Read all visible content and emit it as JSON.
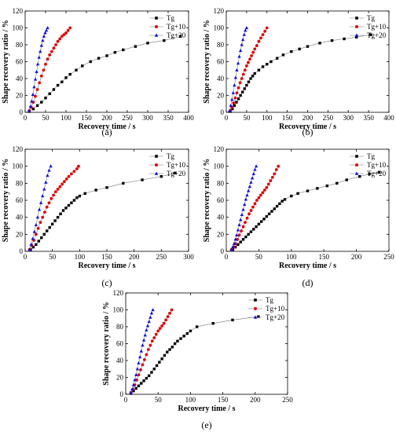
{
  "colors": {
    "Tg": "#000000",
    "Tg+10": "#e00000",
    "Tg+20": "#1010e0"
  },
  "chart_data": [
    {
      "type": "line",
      "panel": "(a)",
      "xlabel": "Recovery time / s",
      "ylabel": "Shape recovery ratio / %",
      "xlim": [
        0,
        400
      ],
      "ylim": [
        0,
        120
      ],
      "xticks": [
        0,
        50,
        100,
        150,
        200,
        250,
        300,
        350,
        400
      ],
      "yticks": [
        0,
        20,
        40,
        60,
        80,
        100,
        120
      ],
      "legend": "top-right",
      "series": [
        {
          "name": "Tg",
          "marker": "square",
          "color": "#000000",
          "x": [
            10,
            20,
            30,
            40,
            50,
            60,
            70,
            80,
            90,
            100,
            110,
            125,
            140,
            160,
            180,
            200,
            220,
            240,
            270,
            300,
            340,
            380
          ],
          "y": [
            1,
            4,
            8,
            12,
            17,
            22,
            27,
            32,
            36,
            41,
            45,
            50,
            55,
            60,
            64,
            67,
            71,
            74,
            78,
            82,
            85,
            90
          ]
        },
        {
          "name": "Tg+10",
          "marker": "circle",
          "color": "#e00000",
          "x": [
            10,
            15,
            20,
            25,
            30,
            35,
            40,
            45,
            50,
            55,
            60,
            65,
            70,
            75,
            80,
            85,
            90,
            95,
            100,
            105,
            110
          ],
          "y": [
            2,
            6,
            12,
            19,
            27,
            35,
            43,
            50,
            57,
            63,
            68,
            72,
            76,
            80,
            84,
            87,
            90,
            92,
            94,
            97,
            100
          ]
        },
        {
          "name": "Tg+20",
          "marker": "triangle",
          "color": "#1010e0",
          "x": [
            10,
            13,
            16,
            19,
            22,
            25,
            28,
            31,
            34,
            37,
            40,
            43,
            46,
            49,
            52,
            55
          ],
          "y": [
            2,
            7,
            13,
            21,
            30,
            39,
            48,
            57,
            65,
            72,
            79,
            85,
            90,
            94,
            97,
            100
          ]
        }
      ]
    },
    {
      "type": "line",
      "panel": "(b)",
      "xlabel": "Recovery time / s",
      "ylabel": "Shape recovery ratio / %",
      "xlim": [
        0,
        400
      ],
      "ylim": [
        0,
        120
      ],
      "xticks": [
        0,
        50,
        100,
        150,
        200,
        250,
        300,
        350,
        400
      ],
      "yticks": [
        0,
        20,
        40,
        60,
        80,
        100,
        120
      ],
      "legend": "top-right",
      "series": [
        {
          "name": "Tg",
          "marker": "square",
          "color": "#000000",
          "x": [
            10,
            15,
            20,
            25,
            30,
            35,
            40,
            45,
            50,
            55,
            60,
            65,
            70,
            80,
            90,
            100,
            110,
            125,
            140,
            160,
            180,
            200,
            230,
            260,
            290,
            320,
            355
          ],
          "y": [
            1,
            4,
            8,
            12,
            16,
            20,
            24,
            28,
            32,
            36,
            40,
            43,
            46,
            50,
            54,
            57,
            60,
            64,
            68,
            72,
            75,
            78,
            82,
            85,
            87,
            89,
            92
          ]
        },
        {
          "name": "Tg+10",
          "marker": "circle",
          "color": "#e00000",
          "x": [
            10,
            14,
            18,
            22,
            26,
            30,
            34,
            38,
            42,
            46,
            50,
            54,
            58,
            62,
            66,
            70,
            75,
            80,
            85,
            90,
            95,
            100
          ],
          "y": [
            2,
            6,
            11,
            17,
            23,
            29,
            35,
            40,
            45,
            50,
            55,
            59,
            63,
            67,
            71,
            75,
            79,
            84,
            88,
            92,
            96,
            100
          ]
        },
        {
          "name": "Tg+20",
          "marker": "triangle",
          "color": "#1010e0",
          "x": [
            8,
            11,
            14,
            17,
            20,
            23,
            26,
            29,
            32,
            35,
            38,
            41,
            44,
            47,
            50
          ],
          "y": [
            2,
            8,
            15,
            23,
            32,
            41,
            50,
            58,
            66,
            73,
            80,
            86,
            92,
            97,
            100
          ]
        }
      ]
    },
    {
      "type": "line",
      "panel": "(c)",
      "xlabel": "Recovery time / s",
      "ylabel": "Shape recovery ratio / %",
      "xlim": [
        0,
        300
      ],
      "ylim": [
        0,
        120
      ],
      "xticks": [
        0,
        50,
        100,
        150,
        200,
        250,
        300
      ],
      "yticks": [
        0,
        20,
        40,
        60,
        80,
        100,
        120
      ],
      "legend": "top-right",
      "series": [
        {
          "name": "Tg",
          "marker": "square",
          "color": "#000000",
          "x": [
            10,
            15,
            20,
            25,
            30,
            35,
            40,
            45,
            50,
            55,
            60,
            65,
            70,
            75,
            80,
            85,
            90,
            95,
            100,
            110,
            130,
            150,
            180,
            215,
            250,
            275
          ],
          "y": [
            2,
            5,
            8,
            12,
            16,
            20,
            24,
            28,
            32,
            36,
            40,
            44,
            48,
            51,
            54,
            57,
            60,
            63,
            65,
            68,
            72,
            75,
            80,
            84,
            88,
            92
          ]
        },
        {
          "name": "Tg+10",
          "marker": "circle",
          "color": "#e00000",
          "x": [
            8,
            12,
            16,
            20,
            24,
            28,
            32,
            36,
            40,
            44,
            48,
            52,
            56,
            60,
            64,
            68,
            72,
            76,
            80,
            85,
            90,
            95,
            98
          ],
          "y": [
            2,
            7,
            13,
            20,
            27,
            34,
            40,
            46,
            52,
            57,
            62,
            66,
            70,
            73,
            76,
            79,
            82,
            85,
            88,
            91,
            94,
            97,
            100
          ]
        },
        {
          "name": "Tg+20",
          "marker": "triangle",
          "color": "#1010e0",
          "x": [
            8,
            11,
            14,
            17,
            20,
            23,
            26,
            29,
            32,
            35,
            38,
            41,
            44,
            47
          ],
          "y": [
            2,
            8,
            15,
            23,
            31,
            40,
            49,
            57,
            65,
            73,
            81,
            89,
            95,
            100
          ]
        }
      ]
    },
    {
      "type": "line",
      "panel": "(d)",
      "xlabel": "Recovery time / s",
      "ylabel": "Shape recovery ratio / %",
      "xlim": [
        0,
        250
      ],
      "ylim": [
        0,
        120
      ],
      "xticks": [
        0,
        50,
        100,
        150,
        200,
        250
      ],
      "yticks": [
        0,
        20,
        40,
        60,
        80,
        100,
        120
      ],
      "legend": "top-right",
      "series": [
        {
          "name": "Tg",
          "marker": "square",
          "color": "#000000",
          "x": [
            10,
            14,
            18,
            22,
            26,
            30,
            34,
            38,
            42,
            46,
            50,
            54,
            58,
            62,
            66,
            70,
            74,
            78,
            82,
            86,
            90,
            100,
            110,
            125,
            140,
            155,
            170,
            185,
            205,
            220,
            235
          ],
          "y": [
            2,
            5,
            8,
            11,
            14,
            17,
            20,
            23,
            26,
            29,
            32,
            35,
            38,
            41,
            44,
            47,
            50,
            53,
            56,
            59,
            61,
            65,
            68,
            71,
            74,
            77,
            80,
            84,
            88,
            91,
            93
          ]
        },
        {
          "name": "Tg+10",
          "marker": "circle",
          "color": "#e00000",
          "x": [
            8,
            11,
            14,
            17,
            20,
            23,
            26,
            29,
            32,
            35,
            38,
            41,
            44,
            47,
            50,
            53,
            56,
            59,
            62,
            65,
            68,
            71,
            74,
            77,
            80
          ],
          "y": [
            2,
            5,
            9,
            14,
            19,
            24,
            29,
            34,
            39,
            44,
            48,
            52,
            56,
            60,
            63,
            66,
            69,
            72,
            75,
            79,
            83,
            87,
            91,
            96,
            100
          ]
        },
        {
          "name": "Tg+20",
          "marker": "triangle",
          "color": "#1010e0",
          "x": [
            8,
            10,
            12,
            14,
            16,
            18,
            20,
            22,
            24,
            26,
            28,
            30,
            32,
            34,
            36,
            38,
            40,
            42,
            44,
            46
          ],
          "y": [
            2,
            5,
            9,
            14,
            19,
            25,
            31,
            37,
            43,
            49,
            55,
            61,
            66,
            71,
            76,
            81,
            86,
            91,
            96,
            100
          ]
        }
      ]
    },
    {
      "type": "line",
      "panel": "(e)",
      "xlabel": "Recovery time / s",
      "ylabel": "Shape recovery ratio / %",
      "xlim": [
        0,
        250
      ],
      "ylim": [
        0,
        120
      ],
      "xticks": [
        0,
        50,
        100,
        150,
        200,
        250
      ],
      "yticks": [
        0,
        20,
        40,
        60,
        80,
        100,
        120
      ],
      "legend": "top-right",
      "series": [
        {
          "name": "Tg",
          "marker": "square",
          "color": "#000000",
          "x": [
            8,
            12,
            16,
            20,
            24,
            28,
            32,
            36,
            40,
            44,
            48,
            52,
            56,
            60,
            64,
            68,
            72,
            76,
            80,
            85,
            90,
            95,
            100,
            110,
            135,
            165,
            205
          ],
          "y": [
            1,
            4,
            7,
            10,
            13,
            16,
            19,
            22,
            26,
            30,
            34,
            38,
            42,
            46,
            50,
            53,
            56,
            60,
            63,
            66,
            69,
            72,
            75,
            80,
            84,
            88,
            92
          ]
        },
        {
          "name": "Tg+10",
          "marker": "circle",
          "color": "#e00000",
          "x": [
            8,
            11,
            14,
            17,
            20,
            23,
            26,
            29,
            32,
            35,
            38,
            41,
            44,
            47,
            50,
            53,
            56,
            59,
            62,
            65,
            68,
            71
          ],
          "y": [
            2,
            6,
            11,
            17,
            23,
            29,
            35,
            41,
            47,
            53,
            58,
            63,
            67,
            71,
            75,
            78,
            81,
            84,
            88,
            92,
            96,
            100
          ]
        },
        {
          "name": "Tg+20",
          "marker": "triangle",
          "color": "#1010e0",
          "x": [
            8,
            10,
            12,
            14,
            16,
            18,
            20,
            22,
            24,
            26,
            28,
            30,
            32,
            34,
            36,
            38,
            40,
            42
          ],
          "y": [
            2,
            6,
            11,
            17,
            23,
            30,
            37,
            44,
            51,
            58,
            64,
            70,
            76,
            81,
            86,
            91,
            96,
            100
          ]
        }
      ]
    }
  ]
}
